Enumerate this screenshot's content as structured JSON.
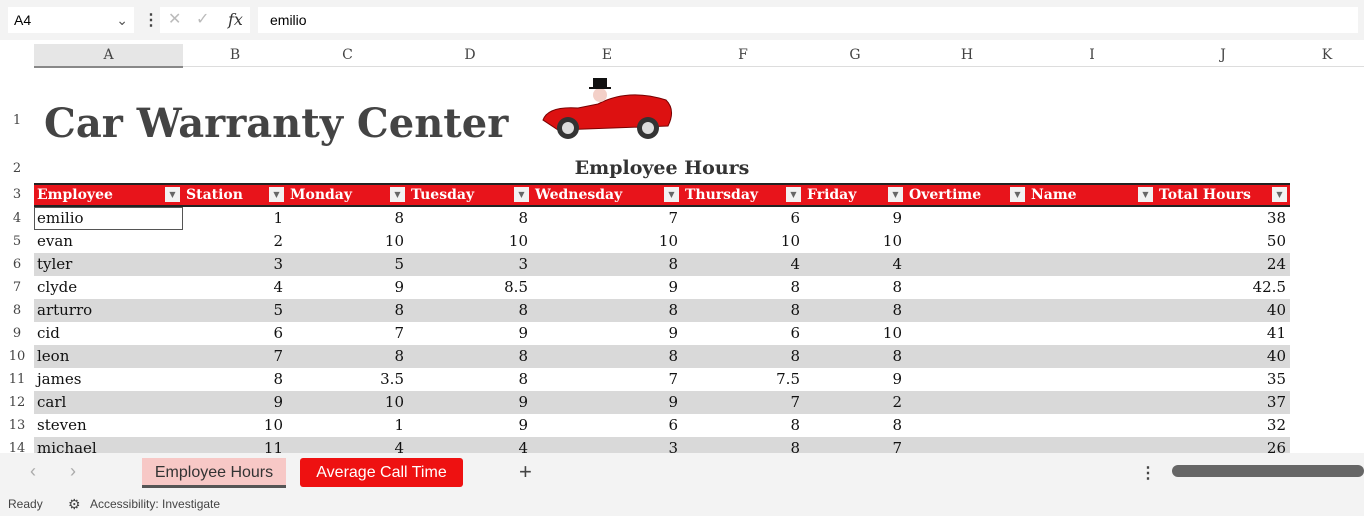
{
  "formula_bar": {
    "name_box": "A4",
    "formula": "emilio"
  },
  "columns": [
    "A",
    "B",
    "C",
    "D",
    "E",
    "F",
    "G",
    "H",
    "I",
    "J",
    "K"
  ],
  "rows": [
    "1",
    "2",
    "3",
    "4",
    "5",
    "6",
    "7",
    "8",
    "9",
    "10",
    "11",
    "12",
    "13",
    "14"
  ],
  "title": "Car Warranty Center",
  "subtitle": "Employee Hours",
  "table": {
    "headers": [
      "Employee",
      "Station",
      "Monday",
      "Tuesday",
      "Wednesday",
      "Thursday",
      "Friday",
      "Overtime",
      "Name",
      "Total Hours"
    ],
    "rows": [
      [
        "emilio",
        "1",
        "8",
        "8",
        "7",
        "6",
        "9",
        "",
        "",
        "38"
      ],
      [
        "evan",
        "2",
        "10",
        "10",
        "10",
        "10",
        "10",
        "",
        "",
        "50"
      ],
      [
        "tyler",
        "3",
        "5",
        "3",
        "8",
        "4",
        "4",
        "",
        "",
        "24"
      ],
      [
        "clyde",
        "4",
        "9",
        "8.5",
        "9",
        "8",
        "8",
        "",
        "",
        "42.5"
      ],
      [
        "arturro",
        "5",
        "8",
        "8",
        "8",
        "8",
        "8",
        "",
        "",
        "40"
      ],
      [
        "cid",
        "6",
        "7",
        "9",
        "9",
        "6",
        "10",
        "",
        "",
        "41"
      ],
      [
        "leon",
        "7",
        "8",
        "8",
        "8",
        "8",
        "8",
        "",
        "",
        "40"
      ],
      [
        "james",
        "8",
        "3.5",
        "8",
        "7",
        "7.5",
        "9",
        "",
        "",
        "35"
      ],
      [
        "carl",
        "9",
        "10",
        "9",
        "9",
        "7",
        "2",
        "",
        "",
        "37"
      ],
      [
        "steven",
        "10",
        "1",
        "9",
        "6",
        "8",
        "8",
        "",
        "",
        "32"
      ],
      [
        "michael",
        "11",
        "4",
        "4",
        "3",
        "8",
        "7",
        "",
        "",
        "26"
      ]
    ]
  },
  "sheets": [
    {
      "label": "Employee Hours",
      "active": true
    },
    {
      "label": "Average Call Time",
      "active": false
    }
  ],
  "status": {
    "ready": "Ready",
    "accessibility": "Accessibility: Investigate"
  },
  "colors": {
    "header_red": "#e8141b",
    "tab_red": "#ee1111"
  }
}
